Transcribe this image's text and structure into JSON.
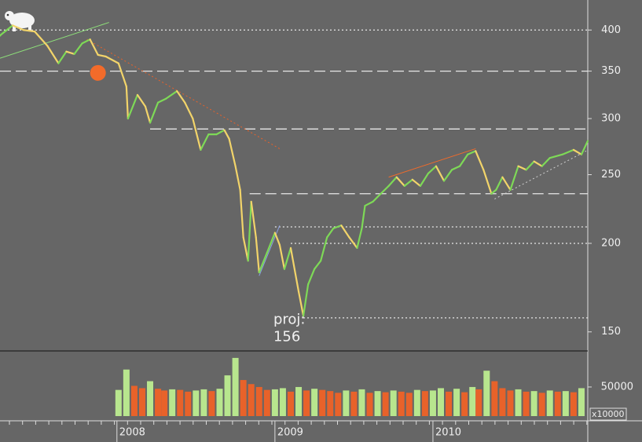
{
  "chart_data": [
    {
      "type": "line",
      "log_scale": true,
      "x": [
        2007.26,
        2007.34,
        2007.41,
        2007.48,
        2007.56,
        2007.63,
        2007.68,
        2007.73,
        2007.78,
        2007.83,
        2007.88,
        2007.93,
        2008.01,
        2008.06,
        2008.07,
        2008.13,
        2008.18,
        2008.21,
        2008.26,
        2008.31,
        2008.38,
        2008.43,
        2008.48,
        2008.53,
        2008.58,
        2008.63,
        2008.68,
        2008.71,
        2008.75,
        2008.78,
        2008.8,
        2008.83,
        2008.85,
        2008.88,
        2008.9,
        2008.95,
        2009.0,
        2009.03,
        2009.06,
        2009.1,
        2009.15,
        2009.18,
        2009.21,
        2009.25,
        2009.29,
        2009.33,
        2009.37,
        2009.42,
        2009.47,
        2009.52,
        2009.55,
        2009.57,
        2009.62,
        2009.67,
        2009.72,
        2009.77,
        2009.82,
        2009.87,
        2009.92,
        2009.97,
        2010.02,
        2010.07,
        2010.12,
        2010.17,
        2010.22,
        2010.27,
        2010.32,
        2010.37,
        2010.4,
        2010.44,
        2010.49,
        2010.54,
        2010.59,
        2010.64,
        2010.69,
        2010.74,
        2010.82,
        2010.89,
        2010.94,
        2010.98
      ],
      "values": [
        393,
        406,
        400,
        398,
        380,
        359,
        373,
        370,
        383,
        388,
        369,
        367,
        359,
        333,
        300,
        324,
        312,
        296,
        316,
        320,
        328,
        316,
        300,
        271,
        285,
        285,
        289,
        281,
        257,
        238,
        204,
        189,
        229,
        204,
        182,
        194,
        207,
        199,
        184,
        197,
        171,
        158,
        175,
        184,
        189,
        204,
        210,
        212,
        204,
        197,
        210,
        226,
        229,
        235,
        241,
        248,
        241,
        246,
        241,
        251,
        257,
        245,
        254,
        257,
        267,
        270,
        254,
        235,
        238,
        248,
        238,
        257,
        254,
        261,
        257,
        264,
        267,
        271,
        267,
        279
      ],
      "up_color": "#7ed957",
      "down_color": "#f2d46a",
      "xlim": [
        2007.26,
        2010.98
      ],
      "ylim": [
        141,
        441
      ],
      "yticks": [
        150,
        200,
        250,
        300,
        350,
        400
      ],
      "reference_lines": [
        {
          "value": 400,
          "from": 2007.26,
          "style": "dotted"
        },
        {
          "value": 350,
          "from": 2007.26,
          "style": "dashed"
        },
        {
          "value": 290,
          "from": 2008.21,
          "style": "dashed"
        },
        {
          "value": 235,
          "from": 2008.84,
          "style": "dashed"
        },
        {
          "value": 211,
          "from": 2009.0,
          "style": "dotted"
        },
        {
          "value": 200,
          "from": 2009.1,
          "style": "dotted"
        },
        {
          "value": 157,
          "from": 2009.18,
          "style": "dotted"
        }
      ],
      "trendlines": [
        {
          "x": [
            2007.26,
            2007.95
          ],
          "values": [
            365,
            410
          ],
          "color": "#8ee07a",
          "style": "solid"
        },
        {
          "x": [
            2007.81,
            2009.03
          ],
          "values": [
            388,
            272
          ],
          "color": "#e8622a",
          "style": "dotted"
        },
        {
          "x": [
            2008.9,
            2009.03
          ],
          "values": [
            180,
            212
          ],
          "color": "#8a9fe0",
          "style": "solid"
        },
        {
          "x": [
            2009.72,
            2010.27
          ],
          "values": [
            248,
            272
          ],
          "color": "#f26b2a",
          "style": "solid"
        },
        {
          "x": [
            2010.39,
            2010.97
          ],
          "values": [
            231,
            270
          ],
          "color": "#cfcfcf",
          "style": "dotted"
        }
      ],
      "marker": {
        "x": 2007.88,
        "value": 348,
        "color": "#f26b2a"
      },
      "annotation": {
        "label": "proj:",
        "value": 156,
        "x": 2009.08
      }
    },
    {
      "type": "bar",
      "x": [
        2008.01,
        2008.06,
        2008.11,
        2008.16,
        2008.21,
        2008.26,
        2008.3,
        2008.35,
        2008.4,
        2008.45,
        2008.5,
        2008.55,
        2008.6,
        2008.65,
        2008.7,
        2008.75,
        2008.8,
        2008.85,
        2008.9,
        2008.95,
        2009.0,
        2009.05,
        2009.1,
        2009.15,
        2009.2,
        2009.25,
        2009.3,
        2009.35,
        2009.4,
        2009.45,
        2009.5,
        2009.55,
        2009.6,
        2009.65,
        2009.7,
        2009.75,
        2009.8,
        2009.85,
        2009.9,
        2009.95,
        2010.0,
        2010.05,
        2010.1,
        2010.15,
        2010.2,
        2010.25,
        2010.29,
        2010.34,
        2010.39,
        2010.44,
        2010.49,
        2010.54,
        2010.59,
        2010.64,
        2010.69,
        2010.74,
        2010.79,
        2010.84,
        2010.89,
        2010.94
      ],
      "values": [
        45000,
        80000,
        52000,
        48000,
        60000,
        47000,
        44000,
        46000,
        45000,
        42000,
        44000,
        46000,
        43000,
        47000,
        70000,
        100000,
        62000,
        55000,
        50000,
        45000,
        46000,
        48000,
        42000,
        50000,
        44000,
        47000,
        45000,
        43000,
        40000,
        44000,
        42000,
        46000,
        40000,
        43000,
        41000,
        44000,
        42000,
        40000,
        45000,
        43000,
        44000,
        48000,
        42000,
        47000,
        41000,
        50000,
        46000,
        78000,
        60000,
        48000,
        44000,
        46000,
        42000,
        43000,
        40000,
        44000,
        42000,
        43000,
        41000,
        48000
      ],
      "up_color": "#b8e68e",
      "down_color": "#e8622a",
      "xlim": [
        2007.26,
        2010.98
      ],
      "ylim": [
        0,
        112000
      ],
      "yticks": [
        50000
      ],
      "unit_label": "x10000",
      "xticks": [
        2008,
        2009,
        2010
      ]
    }
  ]
}
